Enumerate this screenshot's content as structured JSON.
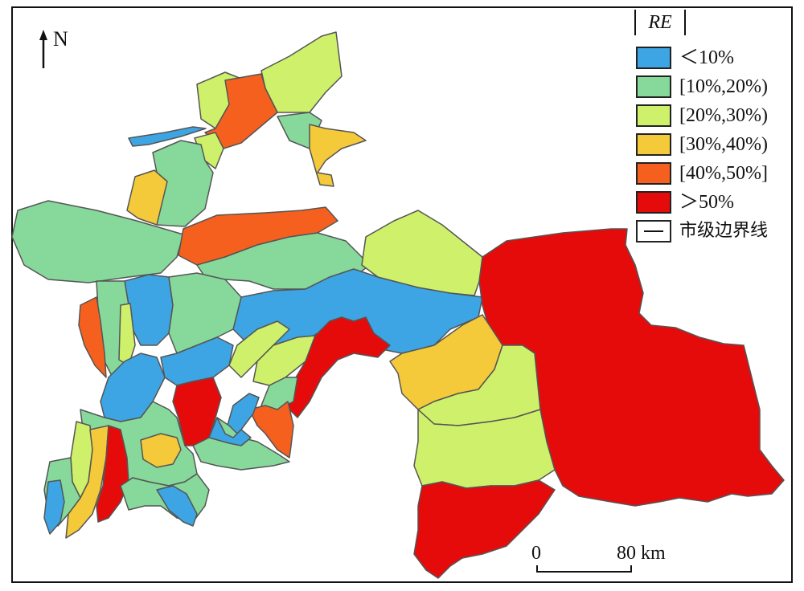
{
  "north": {
    "label": "N"
  },
  "legend": {
    "title": "RE",
    "items": [
      {
        "label": "＜10%",
        "color": "#3DA5E3"
      },
      {
        "label": "[10%,20%)",
        "color": "#86D99A"
      },
      {
        "label": "[20%,30%)",
        "color": "#CFF06A"
      },
      {
        "label": "[30%,40%)",
        "color": "#F4C93A"
      },
      {
        "label": "[40%,50%]",
        "color": "#F6601E"
      },
      {
        "label": "＞50%",
        "color": "#E60B0B"
      }
    ],
    "boundary_label": "市级边界线"
  },
  "scale": {
    "start": "0",
    "end": "80 km"
  }
}
